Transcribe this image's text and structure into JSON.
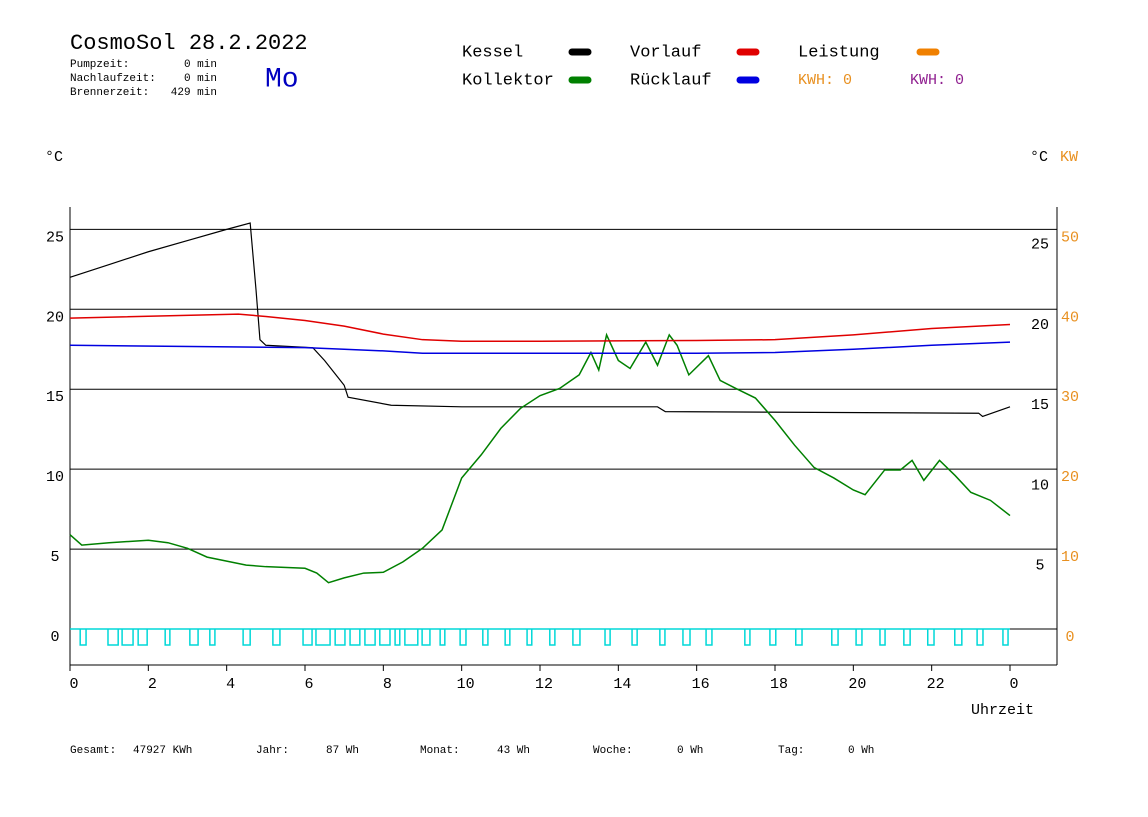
{
  "chart_data": {
    "type": "line",
    "title": "CosmoSol 28.2.2022",
    "day": "Mo",
    "info": [
      {
        "label": "Pumpzeit:",
        "value": "0 min"
      },
      {
        "label": "Nachlaufzeit:",
        "value": "0 min"
      },
      {
        "label": "Brennerzeit:",
        "value": "429 min"
      }
    ],
    "kwh": [
      {
        "text": "KWH: 0",
        "color": "#e89020"
      },
      {
        "text": "KWH: 0",
        "color": "#902090"
      }
    ],
    "ylabel": "°C",
    "y2label": "°C",
    "kwlabel": "KW",
    "xlabel": "Uhrzeit",
    "xlim": [
      0,
      25.2
    ],
    "xticks": [
      0,
      2,
      4,
      6,
      8,
      10,
      12,
      14,
      16,
      18,
      20,
      22,
      {
        "value": 24,
        "label": "0"
      }
    ],
    "ylim": [
      -2.25,
      26.4
    ],
    "yticks": [
      0,
      5,
      10,
      15,
      20,
      25
    ],
    "y2lim": [
      -1.2,
      27.35
    ],
    "y2ticks": [
      5,
      10,
      15,
      20,
      25
    ],
    "kwlim": [
      -4.5,
      52.8
    ],
    "kwticks": [
      0,
      10,
      20,
      30,
      40,
      50
    ],
    "kwcolor": "#e89020",
    "grid": true,
    "series": [
      {
        "name": "Kessel",
        "color": "#000000",
        "x": [
          0,
          1,
          2,
          3,
          4,
          4.6,
          4.75,
          4.85,
          5,
          6.2,
          6.5,
          7,
          7.1,
          8.2,
          10,
          15,
          15.2,
          23.2,
          23.3,
          24
        ],
        "values": [
          22,
          22.8,
          23.6,
          24.3,
          25,
          25.4,
          21.2,
          18.1,
          17.75,
          17.6,
          16.8,
          15.25,
          14.5,
          14,
          13.9,
          13.9,
          13.6,
          13.5,
          13.3,
          13.9
        ]
      },
      {
        "name": "Kollektor",
        "color": "#008000",
        "x": [
          0,
          0.3,
          1,
          2,
          2.5,
          3,
          3.5,
          4.5,
          5,
          6,
          6.3,
          6.6,
          7,
          7.5,
          8,
          8.5,
          9,
          9.5,
          10,
          10.5,
          11,
          11.5,
          12,
          12.5,
          13,
          13.3,
          13.5,
          13.7,
          14,
          14.3,
          14.7,
          15,
          15.3,
          15.5,
          15.8,
          16.3,
          16.6,
          17,
          17.5,
          18,
          18.5,
          19,
          19.5,
          20,
          20.3,
          20.8,
          21.2,
          21.5,
          21.8,
          22.2,
          22.6,
          23,
          23.5,
          24
        ],
        "values": [
          5.9,
          5.25,
          5.4,
          5.55,
          5.4,
          5.05,
          4.5,
          4,
          3.9,
          3.8,
          3.5,
          2.9,
          3.2,
          3.5,
          3.55,
          4.2,
          5.05,
          6.2,
          9.45,
          10.9,
          12.55,
          13.8,
          14.6,
          15.05,
          15.9,
          17.3,
          16.2,
          18.4,
          16.8,
          16.3,
          17.95,
          16.5,
          18.4,
          17.75,
          15.9,
          17.1,
          15.55,
          15.05,
          14.45,
          13.05,
          11.5,
          10.1,
          9.45,
          8.7,
          8.4,
          9.95,
          9.95,
          10.55,
          9.3,
          10.55,
          9.6,
          8.55,
          8.05,
          7.1
        ]
      },
      {
        "name": "Vorlauf",
        "color": "#e00000",
        "x": [
          0,
          4.3,
          5,
          6,
          7,
          8,
          9,
          10,
          12,
          16,
          18,
          20,
          22,
          24
        ],
        "values": [
          19.45,
          19.7,
          19.55,
          19.3,
          18.95,
          18.45,
          18.1,
          18,
          18,
          18.05,
          18.1,
          18.4,
          18.8,
          19.05
        ]
      },
      {
        "name": "Rücklauf",
        "color": "#0000e0",
        "x": [
          0,
          6,
          7,
          8,
          9,
          10,
          16,
          18,
          20,
          22,
          24
        ],
        "values": [
          17.75,
          17.6,
          17.5,
          17.4,
          17.25,
          17.25,
          17.25,
          17.3,
          17.5,
          17.75,
          17.95
        ]
      },
      {
        "name": "Leistung",
        "color": "#f08000",
        "axis": "kw",
        "x": [],
        "values": []
      }
    ],
    "pump": {
      "color": "#00d8d8",
      "level": -1,
      "intervals": [
        [
          0.26,
          0.41
        ],
        [
          0.97,
          1.23
        ],
        [
          1.33,
          1.61
        ],
        [
          1.74,
          1.97
        ],
        [
          2.43,
          2.55
        ],
        [
          3.06,
          3.27
        ],
        [
          3.57,
          3.7
        ],
        [
          4.42,
          4.6
        ],
        [
          5.18,
          5.36
        ],
        [
          5.95,
          6.18
        ],
        [
          6.28,
          6.64
        ],
        [
          6.77,
          7.02
        ],
        [
          7.15,
          7.4
        ],
        [
          7.53,
          7.79
        ],
        [
          7.91,
          8.17
        ],
        [
          8.3,
          8.42
        ],
        [
          8.55,
          8.88
        ],
        [
          8.99,
          9.19
        ],
        [
          9.45,
          9.57
        ],
        [
          9.96,
          10.11
        ],
        [
          10.54,
          10.67
        ],
        [
          11.11,
          11.23
        ],
        [
          11.67,
          11.79
        ],
        [
          12.25,
          12.38
        ],
        [
          12.84,
          13.02
        ],
        [
          13.66,
          13.79
        ],
        [
          14.35,
          14.48
        ],
        [
          15.06,
          15.19
        ],
        [
          15.65,
          15.83
        ],
        [
          16.24,
          16.39
        ],
        [
          17.23,
          17.36
        ],
        [
          17.87,
          18.02
        ],
        [
          18.53,
          18.69
        ],
        [
          19.45,
          19.61
        ],
        [
          20.07,
          20.22
        ],
        [
          20.68,
          20.81
        ],
        [
          21.29,
          21.45
        ],
        [
          21.9,
          22.06
        ],
        [
          22.59,
          22.77
        ],
        [
          23.16,
          23.31
        ],
        [
          23.82,
          23.95
        ]
      ]
    },
    "totals": [
      {
        "label": "Gesamt:",
        "value": "47927 KWh"
      },
      {
        "label": "Jahr:",
        "value": "87 Wh"
      },
      {
        "label": "Monat:",
        "value": "43 Wh"
      },
      {
        "label": "Woche:",
        "value": "0 Wh"
      },
      {
        "label": "Tag:",
        "value": "0 Wh"
      }
    ]
  }
}
